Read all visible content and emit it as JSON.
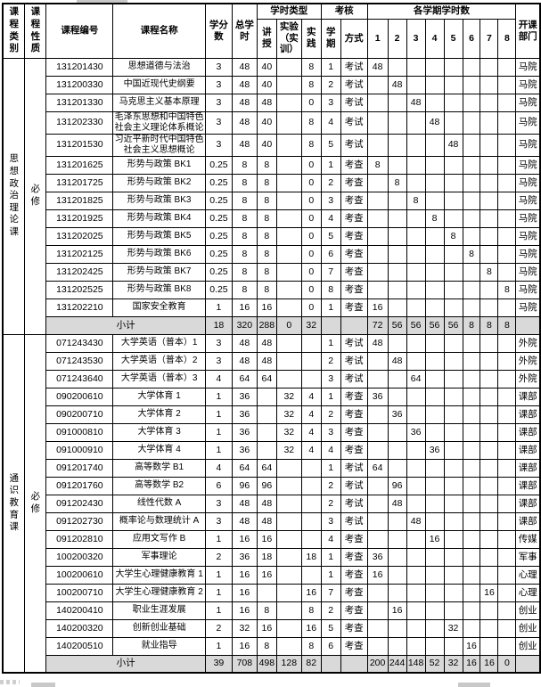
{
  "header": {
    "col_category": "课程类别",
    "col_nature": "课程性质",
    "col_code": "课程编号",
    "col_name": "课程名称",
    "col_credits": "学分\n数",
    "col_total_hours": "总学\n时",
    "group_hour_type": "学时类型",
    "col_lecture": "讲\n授",
    "col_lab": "实验\n（实\n训）",
    "col_practice": "实\n践",
    "group_assessment": "考核",
    "col_semester": "学\n期",
    "col_method": "方式",
    "group_semester_hours": "各学期学时数",
    "semester_numbers": [
      "1",
      "2",
      "3",
      "4",
      "5",
      "6",
      "7",
      "8"
    ],
    "col_department": "开课\n部门"
  },
  "colors": {
    "border": "#000000",
    "subtotal_bg": "#d9d9d9"
  },
  "sections": [
    {
      "category": "思想政治理论课",
      "nature": "必修",
      "rows": [
        {
          "code": "131201430",
          "name": "思想道德与法治",
          "credits": "3",
          "total": "48",
          "lecture": "40",
          "lab": "",
          "practice": "8",
          "semester": "1",
          "method": "考试",
          "semesters": [
            "48",
            "",
            "",
            "",
            "",
            "",
            "",
            ""
          ],
          "dept": "马院"
        },
        {
          "code": "131200330",
          "name": "中国近现代史纲要",
          "credits": "3",
          "total": "48",
          "lecture": "40",
          "lab": "",
          "practice": "8",
          "semester": "2",
          "method": "考试",
          "semesters": [
            "",
            "48",
            "",
            "",
            "",
            "",
            "",
            ""
          ],
          "dept": "马院"
        },
        {
          "code": "131201330",
          "name": "马克思主义基本原理",
          "credits": "3",
          "total": "48",
          "lecture": "48",
          "lab": "",
          "practice": "0",
          "semester": "3",
          "method": "考试",
          "semesters": [
            "",
            "",
            "48",
            "",
            "",
            "",
            "",
            ""
          ],
          "dept": "马院"
        },
        {
          "code": "131202330",
          "name": "毛泽东思想和中国特色社会主义理论体系概论",
          "credits": "3",
          "total": "48",
          "lecture": "40",
          "lab": "",
          "practice": "8",
          "semester": "4",
          "method": "考试",
          "semesters": [
            "",
            "",
            "",
            "48",
            "",
            "",
            "",
            ""
          ],
          "dept": "马院"
        },
        {
          "code": "131201530",
          "name": "习近平新时代中国特色社会主义思想概论",
          "credits": "3",
          "total": "48",
          "lecture": "40",
          "lab": "",
          "practice": "8",
          "semester": "5",
          "method": "考试",
          "semesters": [
            "",
            "",
            "",
            "",
            "48",
            "",
            "",
            ""
          ],
          "dept": "马院"
        },
        {
          "code": "131201625",
          "name": "形势与政策 BK1",
          "credits": "0.25",
          "total": "8",
          "lecture": "8",
          "lab": "",
          "practice": "0",
          "semester": "1",
          "method": "考查",
          "semesters": [
            "8",
            "",
            "",
            "",
            "",
            "",
            "",
            ""
          ],
          "dept": "马院"
        },
        {
          "code": "131201725",
          "name": "形势与政策 BK2",
          "credits": "0.25",
          "total": "8",
          "lecture": "8",
          "lab": "",
          "practice": "0",
          "semester": "2",
          "method": "考查",
          "semesters": [
            "",
            "8",
            "",
            "",
            "",
            "",
            "",
            ""
          ],
          "dept": "马院"
        },
        {
          "code": "131201825",
          "name": "形势与政策 BK3",
          "credits": "0.25",
          "total": "8",
          "lecture": "8",
          "lab": "",
          "practice": "0",
          "semester": "3",
          "method": "考查",
          "semesters": [
            "",
            "",
            "8",
            "",
            "",
            "",
            "",
            ""
          ],
          "dept": "马院"
        },
        {
          "code": "131201925",
          "name": "形势与政策 BK4",
          "credits": "0.25",
          "total": "8",
          "lecture": "8",
          "lab": "",
          "practice": "0",
          "semester": "4",
          "method": "考查",
          "semesters": [
            "",
            "",
            "",
            "8",
            "",
            "",
            "",
            ""
          ],
          "dept": "马院"
        },
        {
          "code": "131202025",
          "name": "形势与政策 BK5",
          "credits": "0.25",
          "total": "8",
          "lecture": "8",
          "lab": "",
          "practice": "0",
          "semester": "5",
          "method": "考查",
          "semesters": [
            "",
            "",
            "",
            "",
            "8",
            "",
            "",
            ""
          ],
          "dept": "马院"
        },
        {
          "code": "131202125",
          "name": "形势与政策 BK6",
          "credits": "0.25",
          "total": "8",
          "lecture": "8",
          "lab": "",
          "practice": "0",
          "semester": "6",
          "method": "考查",
          "semesters": [
            "",
            "",
            "",
            "",
            "",
            "8",
            "",
            ""
          ],
          "dept": "马院"
        },
        {
          "code": "131202425",
          "name": "形势与政策 BK7",
          "credits": "0.25",
          "total": "8",
          "lecture": "8",
          "lab": "",
          "practice": "0",
          "semester": "7",
          "method": "考查",
          "semesters": [
            "",
            "",
            "",
            "",
            "",
            "",
            "8",
            ""
          ],
          "dept": "马院"
        },
        {
          "code": "131202525",
          "name": "形势与政策 BK8",
          "credits": "0.25",
          "total": "8",
          "lecture": "8",
          "lab": "",
          "practice": "0",
          "semester": "8",
          "method": "考查",
          "semesters": [
            "",
            "",
            "",
            "",
            "",
            "",
            "",
            "8"
          ],
          "dept": "马院"
        },
        {
          "code": "131202210",
          "name": "国家安全教育",
          "credits": "1",
          "total": "16",
          "lecture": "16",
          "lab": "",
          "practice": "0",
          "semester": "1",
          "method": "考查",
          "semesters": [
            "16",
            "",
            "",
            "",
            "",
            "",
            "",
            ""
          ],
          "dept": "马院"
        }
      ],
      "subtotal": {
        "label": "小计",
        "credits": "18",
        "total": "320",
        "lecture": "288",
        "lab": "0",
        "practice": "32",
        "semester": "",
        "method": "",
        "semesters": [
          "72",
          "56",
          "56",
          "56",
          "56",
          "8",
          "8",
          "8"
        ],
        "dept": ""
      }
    },
    {
      "category": "通识教育课",
      "nature": "必修",
      "rows": [
        {
          "code": "071243430",
          "name": "大学英语（普本）1",
          "credits": "3",
          "total": "48",
          "lecture": "48",
          "lab": "",
          "practice": "",
          "semester": "1",
          "method": "考试",
          "semesters": [
            "48",
            "",
            "",
            "",
            "",
            "",
            "",
            ""
          ],
          "dept": "外院"
        },
        {
          "code": "071243530",
          "name": "大学英语（普本）2",
          "credits": "3",
          "total": "48",
          "lecture": "48",
          "lab": "",
          "practice": "",
          "semester": "2",
          "method": "考试",
          "semesters": [
            "",
            "48",
            "",
            "",
            "",
            "",
            "",
            ""
          ],
          "dept": "外院"
        },
        {
          "code": "071243640",
          "name": "大学英语（普本）3",
          "credits": "4",
          "total": "64",
          "lecture": "64",
          "lab": "",
          "practice": "",
          "semester": "3",
          "method": "考试",
          "semesters": [
            "",
            "",
            "64",
            "",
            "",
            "",
            "",
            ""
          ],
          "dept": "外院"
        },
        {
          "code": "090200610",
          "name": "大学体育 1",
          "credits": "1",
          "total": "36",
          "lecture": "",
          "lab": "32",
          "practice": "4",
          "semester": "1",
          "method": "考查",
          "semesters": [
            "36",
            "",
            "",
            "",
            "",
            "",
            "",
            ""
          ],
          "dept": "课部"
        },
        {
          "code": "090200710",
          "name": "大学体育 2",
          "credits": "1",
          "total": "36",
          "lecture": "",
          "lab": "32",
          "practice": "4",
          "semester": "2",
          "method": "考查",
          "semesters": [
            "",
            "36",
            "",
            "",
            "",
            "",
            "",
            ""
          ],
          "dept": "课部"
        },
        {
          "code": "091000810",
          "name": "大学体育 3",
          "credits": "1",
          "total": "36",
          "lecture": "",
          "lab": "32",
          "practice": "4",
          "semester": "3",
          "method": "考查",
          "semesters": [
            "",
            "",
            "36",
            "",
            "",
            "",
            "",
            ""
          ],
          "dept": "课部"
        },
        {
          "code": "091000910",
          "name": "大学体育 4",
          "credits": "1",
          "total": "36",
          "lecture": "",
          "lab": "32",
          "practice": "4",
          "semester": "4",
          "method": "考查",
          "semesters": [
            "",
            "",
            "",
            "36",
            "",
            "",
            "",
            ""
          ],
          "dept": "课部"
        },
        {
          "code": "091201740",
          "name": "高等数学 B1",
          "credits": "4",
          "total": "64",
          "lecture": "64",
          "lab": "",
          "practice": "",
          "semester": "1",
          "method": "考试",
          "semesters": [
            "64",
            "",
            "",
            "",
            "",
            "",
            "",
            ""
          ],
          "dept": "课部"
        },
        {
          "code": "091201760",
          "name": "高等数学 B2",
          "credits": "6",
          "total": "96",
          "lecture": "96",
          "lab": "",
          "practice": "",
          "semester": "2",
          "method": "考试",
          "semesters": [
            "",
            "96",
            "",
            "",
            "",
            "",
            "",
            ""
          ],
          "dept": "课部"
        },
        {
          "code": "091202430",
          "name": "线性代数 A",
          "credits": "3",
          "total": "48",
          "lecture": "48",
          "lab": "",
          "practice": "",
          "semester": "2",
          "method": "考试",
          "semesters": [
            "",
            "48",
            "",
            "",
            "",
            "",
            "",
            ""
          ],
          "dept": "课部"
        },
        {
          "code": "091202730",
          "name": "概率论与数理统计 A",
          "credits": "3",
          "total": "48",
          "lecture": "48",
          "lab": "",
          "practice": "",
          "semester": "3",
          "method": "考试",
          "semesters": [
            "",
            "",
            "48",
            "",
            "",
            "",
            "",
            ""
          ],
          "dept": "课部"
        },
        {
          "code": "091202810",
          "name": "应用文写作 B",
          "credits": "1",
          "total": "16",
          "lecture": "16",
          "lab": "",
          "practice": "",
          "semester": "4",
          "method": "考查",
          "semesters": [
            "",
            "",
            "",
            "16",
            "",
            "",
            "",
            ""
          ],
          "dept": "传媒"
        },
        {
          "code": "100200320",
          "name": "军事理论",
          "credits": "2",
          "total": "36",
          "lecture": "18",
          "lab": "",
          "practice": "18",
          "semester": "1",
          "method": "考查",
          "semesters": [
            "36",
            "",
            "",
            "",
            "",
            "",
            "",
            ""
          ],
          "dept": "军事"
        },
        {
          "code": "100200610",
          "name": "大学生心理健康教育 1",
          "credits": "1",
          "total": "16",
          "lecture": "16",
          "lab": "",
          "practice": "",
          "semester": "1",
          "method": "考查",
          "semesters": [
            "16",
            "",
            "",
            "",
            "",
            "",
            "",
            ""
          ],
          "dept": "心理"
        },
        {
          "code": "100200710",
          "name": "大学生心理健康教育 2",
          "credits": "1",
          "total": "16",
          "lecture": "",
          "lab": "",
          "practice": "16",
          "semester": "7",
          "method": "考查",
          "semesters": [
            "",
            "",
            "",
            "",
            "",
            "",
            "16",
            ""
          ],
          "dept": "心理"
        },
        {
          "code": "140200410",
          "name": "职业生涯发展",
          "credits": "1",
          "total": "16",
          "lecture": "8",
          "lab": "",
          "practice": "8",
          "semester": "2",
          "method": "考查",
          "semesters": [
            "",
            "16",
            "",
            "",
            "",
            "",
            "",
            ""
          ],
          "dept": "创业"
        },
        {
          "code": "140200320",
          "name": "创新创业基础",
          "credits": "2",
          "total": "32",
          "lecture": "16",
          "lab": "",
          "practice": "16",
          "semester": "5",
          "method": "考查",
          "semesters": [
            "",
            "",
            "",
            "",
            "32",
            "",
            "",
            ""
          ],
          "dept": "创业"
        },
        {
          "code": "140200510",
          "name": "就业指导",
          "credits": "1",
          "total": "16",
          "lecture": "8",
          "lab": "",
          "practice": "8",
          "semester": "6",
          "method": "考查",
          "semesters": [
            "",
            "",
            "",
            "",
            "",
            "16",
            "",
            ""
          ],
          "dept": "创业"
        }
      ],
      "subtotal": {
        "label": "小计",
        "credits": "39",
        "total": "708",
        "lecture": "498",
        "lab": "128",
        "practice": "82",
        "semester": "",
        "method": "",
        "semesters": [
          "200",
          "244",
          "148",
          "52",
          "32",
          "16",
          "16",
          "0"
        ],
        "dept": ""
      }
    }
  ]
}
